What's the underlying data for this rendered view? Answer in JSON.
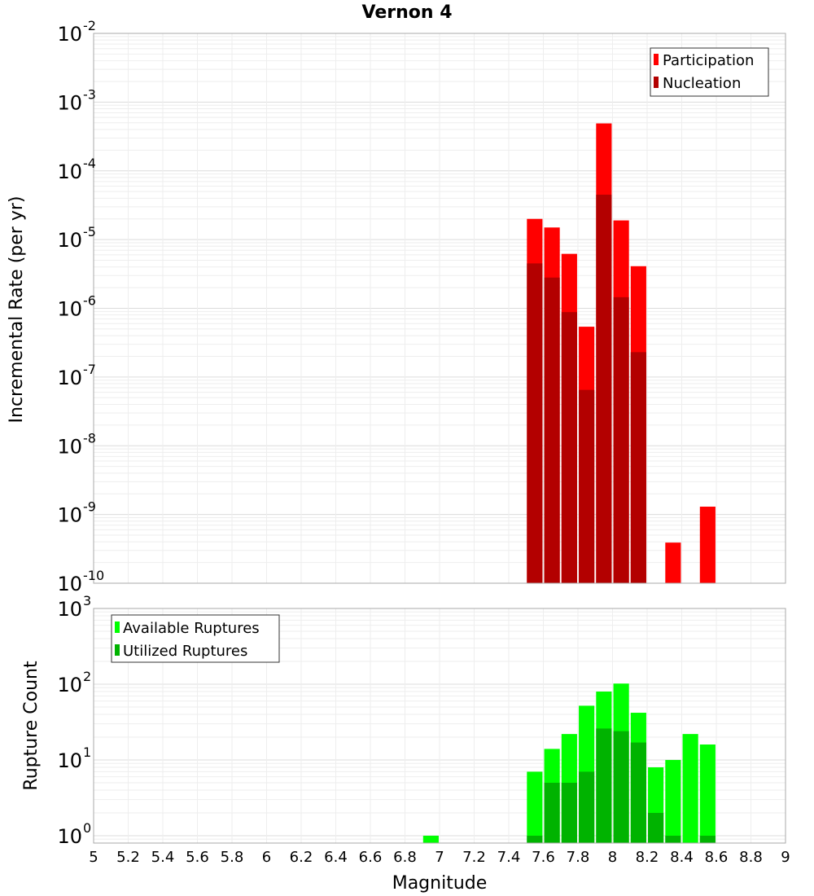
{
  "chart_data": [
    {
      "type": "bar",
      "title": "Vernon 4",
      "xlabel": "",
      "ylabel": "Incremental Rate (per yr)",
      "yscale": "log",
      "ylim": [
        1e-10,
        0.01
      ],
      "xlim": [
        5,
        9
      ],
      "legend_position": "top-right",
      "bin_centers": [
        7.55,
        7.65,
        7.75,
        7.85,
        7.95,
        8.05,
        8.15,
        8.25,
        8.35,
        8.45,
        8.55
      ],
      "series": [
        {
          "name": "Participation",
          "color": "#ff0000",
          "values": [
            2e-05,
            1.5e-05,
            6.2e-06,
            5.4e-07,
            0.00049,
            1.9e-05,
            4.1e-06,
            null,
            3.9e-10,
            null,
            1.3e-09
          ]
        },
        {
          "name": "Nucleation",
          "color": "#b30000",
          "values": [
            4.5e-06,
            2.8e-06,
            8.8e-07,
            6.5e-08,
            4.5e-05,
            1.45e-06,
            2.3e-07,
            null,
            null,
            null,
            null
          ]
        }
      ]
    },
    {
      "type": "bar",
      "title": "",
      "xlabel": "Magnitude",
      "ylabel": "Rupture Count",
      "yscale": "log",
      "ylim": [
        0.8,
        1000
      ],
      "xlim": [
        5,
        9
      ],
      "legend_position": "top-left",
      "bin_centers": [
        6.95,
        7.55,
        7.65,
        7.75,
        7.85,
        7.95,
        8.05,
        8.15,
        8.25,
        8.35,
        8.45,
        8.55
      ],
      "series": [
        {
          "name": "Available Ruptures",
          "color": "#00ff00",
          "values": [
            1,
            7,
            14,
            22,
            52,
            80,
            102,
            42,
            8,
            10,
            22,
            16
          ]
        },
        {
          "name": "Utilized Ruptures",
          "color": "#00b300",
          "values": [
            null,
            1,
            5,
            5,
            7,
            26,
            24,
            17,
            2,
            1,
            null,
            1
          ]
        }
      ]
    }
  ],
  "x_ticks": [
    "5",
    "5.2",
    "5.4",
    "5.6",
    "5.8",
    "6",
    "6.2",
    "6.4",
    "6.6",
    "6.8",
    "7",
    "7.2",
    "7.4",
    "7.6",
    "7.8",
    "8",
    "8.2",
    "8.4",
    "8.6",
    "8.8",
    "9"
  ],
  "top_y_ticks": [
    {
      "base": "10",
      "exp": "-2"
    },
    {
      "base": "10",
      "exp": "-3"
    },
    {
      "base": "10",
      "exp": "-4"
    },
    {
      "base": "10",
      "exp": "-5"
    },
    {
      "base": "10",
      "exp": "-6"
    },
    {
      "base": "10",
      "exp": "-7"
    },
    {
      "base": "10",
      "exp": "-8"
    },
    {
      "base": "10",
      "exp": "-9"
    },
    {
      "base": "10",
      "exp": "-10"
    }
  ],
  "bottom_y_ticks": [
    {
      "base": "10",
      "exp": "3"
    },
    {
      "base": "10",
      "exp": "2"
    },
    {
      "base": "10",
      "exp": "1"
    },
    {
      "base": "10",
      "exp": "0"
    }
  ]
}
